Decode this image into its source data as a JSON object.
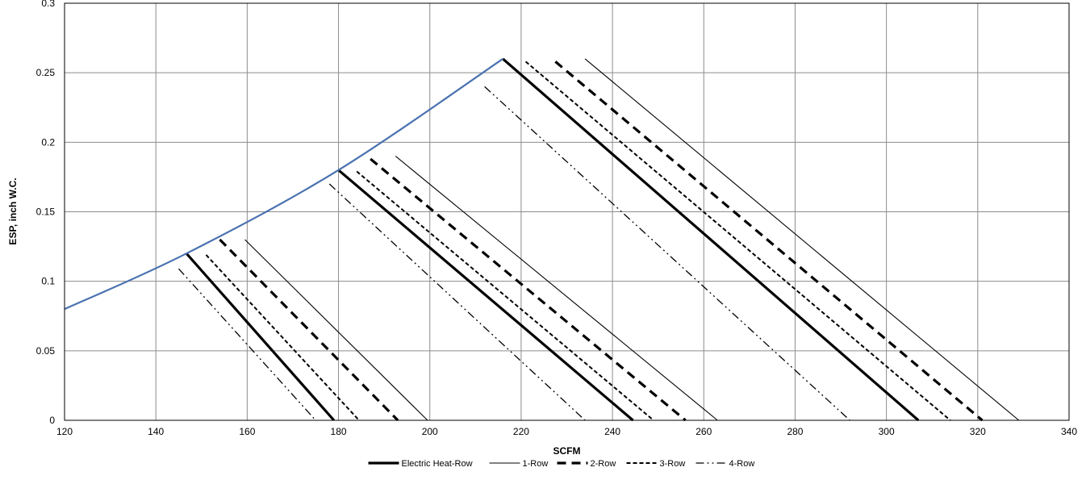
{
  "chart_data": {
    "type": "line",
    "title": "",
    "xlabel": "SCFM",
    "ylabel": "ESP, inch W.C.",
    "xlim": [
      120,
      340
    ],
    "ylim": [
      0,
      0.3
    ],
    "x_ticks": [
      "120",
      "140",
      "160",
      "180",
      "200",
      "220",
      "240",
      "260",
      "280",
      "300",
      "320",
      "340"
    ],
    "y_ticks": [
      "0",
      "0.05",
      "0.1",
      "0.15",
      "0.2",
      "0.25",
      "0.3"
    ],
    "grid": true,
    "legend_position": "bottom",
    "envelope": {
      "color": "#4a72b0",
      "points": [
        [
          120,
          0.08
        ],
        [
          146.7,
          0.12
        ],
        [
          180,
          0.18
        ],
        [
          216,
          0.26
        ]
      ]
    },
    "series": [
      {
        "name": "Electric Heat-Row",
        "style": "thick-solid",
        "segments": [
          [
            [
              146.7,
              0.12
            ],
            [
              179,
              0
            ]
          ],
          [
            [
              180,
              0.18
            ],
            [
              244.5,
              0
            ]
          ],
          [
            [
              216,
              0.26
            ],
            [
              307,
              0
            ]
          ]
        ]
      },
      {
        "name": "1-Row",
        "style": "thin-solid",
        "segments": [
          [
            [
              159.5,
              0.13
            ],
            [
              199.5,
              0
            ]
          ],
          [
            [
              192.5,
              0.19
            ],
            [
              263,
              0
            ]
          ],
          [
            [
              234,
              0.26
            ],
            [
              329,
              0
            ]
          ]
        ]
      },
      {
        "name": "2-Row",
        "style": "thick-dash",
        "segments": [
          [
            [
              154,
              0.13
            ],
            [
              193,
              0
            ]
          ],
          [
            [
              187,
              0.188
            ],
            [
              256,
              0
            ]
          ],
          [
            [
              227.5,
              0.258
            ],
            [
              321,
              0
            ]
          ]
        ]
      },
      {
        "name": "3-Row",
        "style": "short-dash",
        "segments": [
          [
            [
              151,
              0.119
            ],
            [
              184.5,
              0
            ]
          ],
          [
            [
              184,
              0.179
            ],
            [
              249,
              0
            ]
          ],
          [
            [
              221,
              0.258
            ],
            [
              314,
              0
            ]
          ]
        ]
      },
      {
        "name": "4-Row",
        "style": "dash-dot",
        "segments": [
          [
            [
              145,
              0.109
            ],
            [
              175,
              0
            ]
          ],
          [
            [
              178,
              0.17
            ],
            [
              234,
              0
            ]
          ],
          [
            [
              212,
              0.24
            ],
            [
              292,
              0
            ]
          ]
        ]
      }
    ]
  }
}
